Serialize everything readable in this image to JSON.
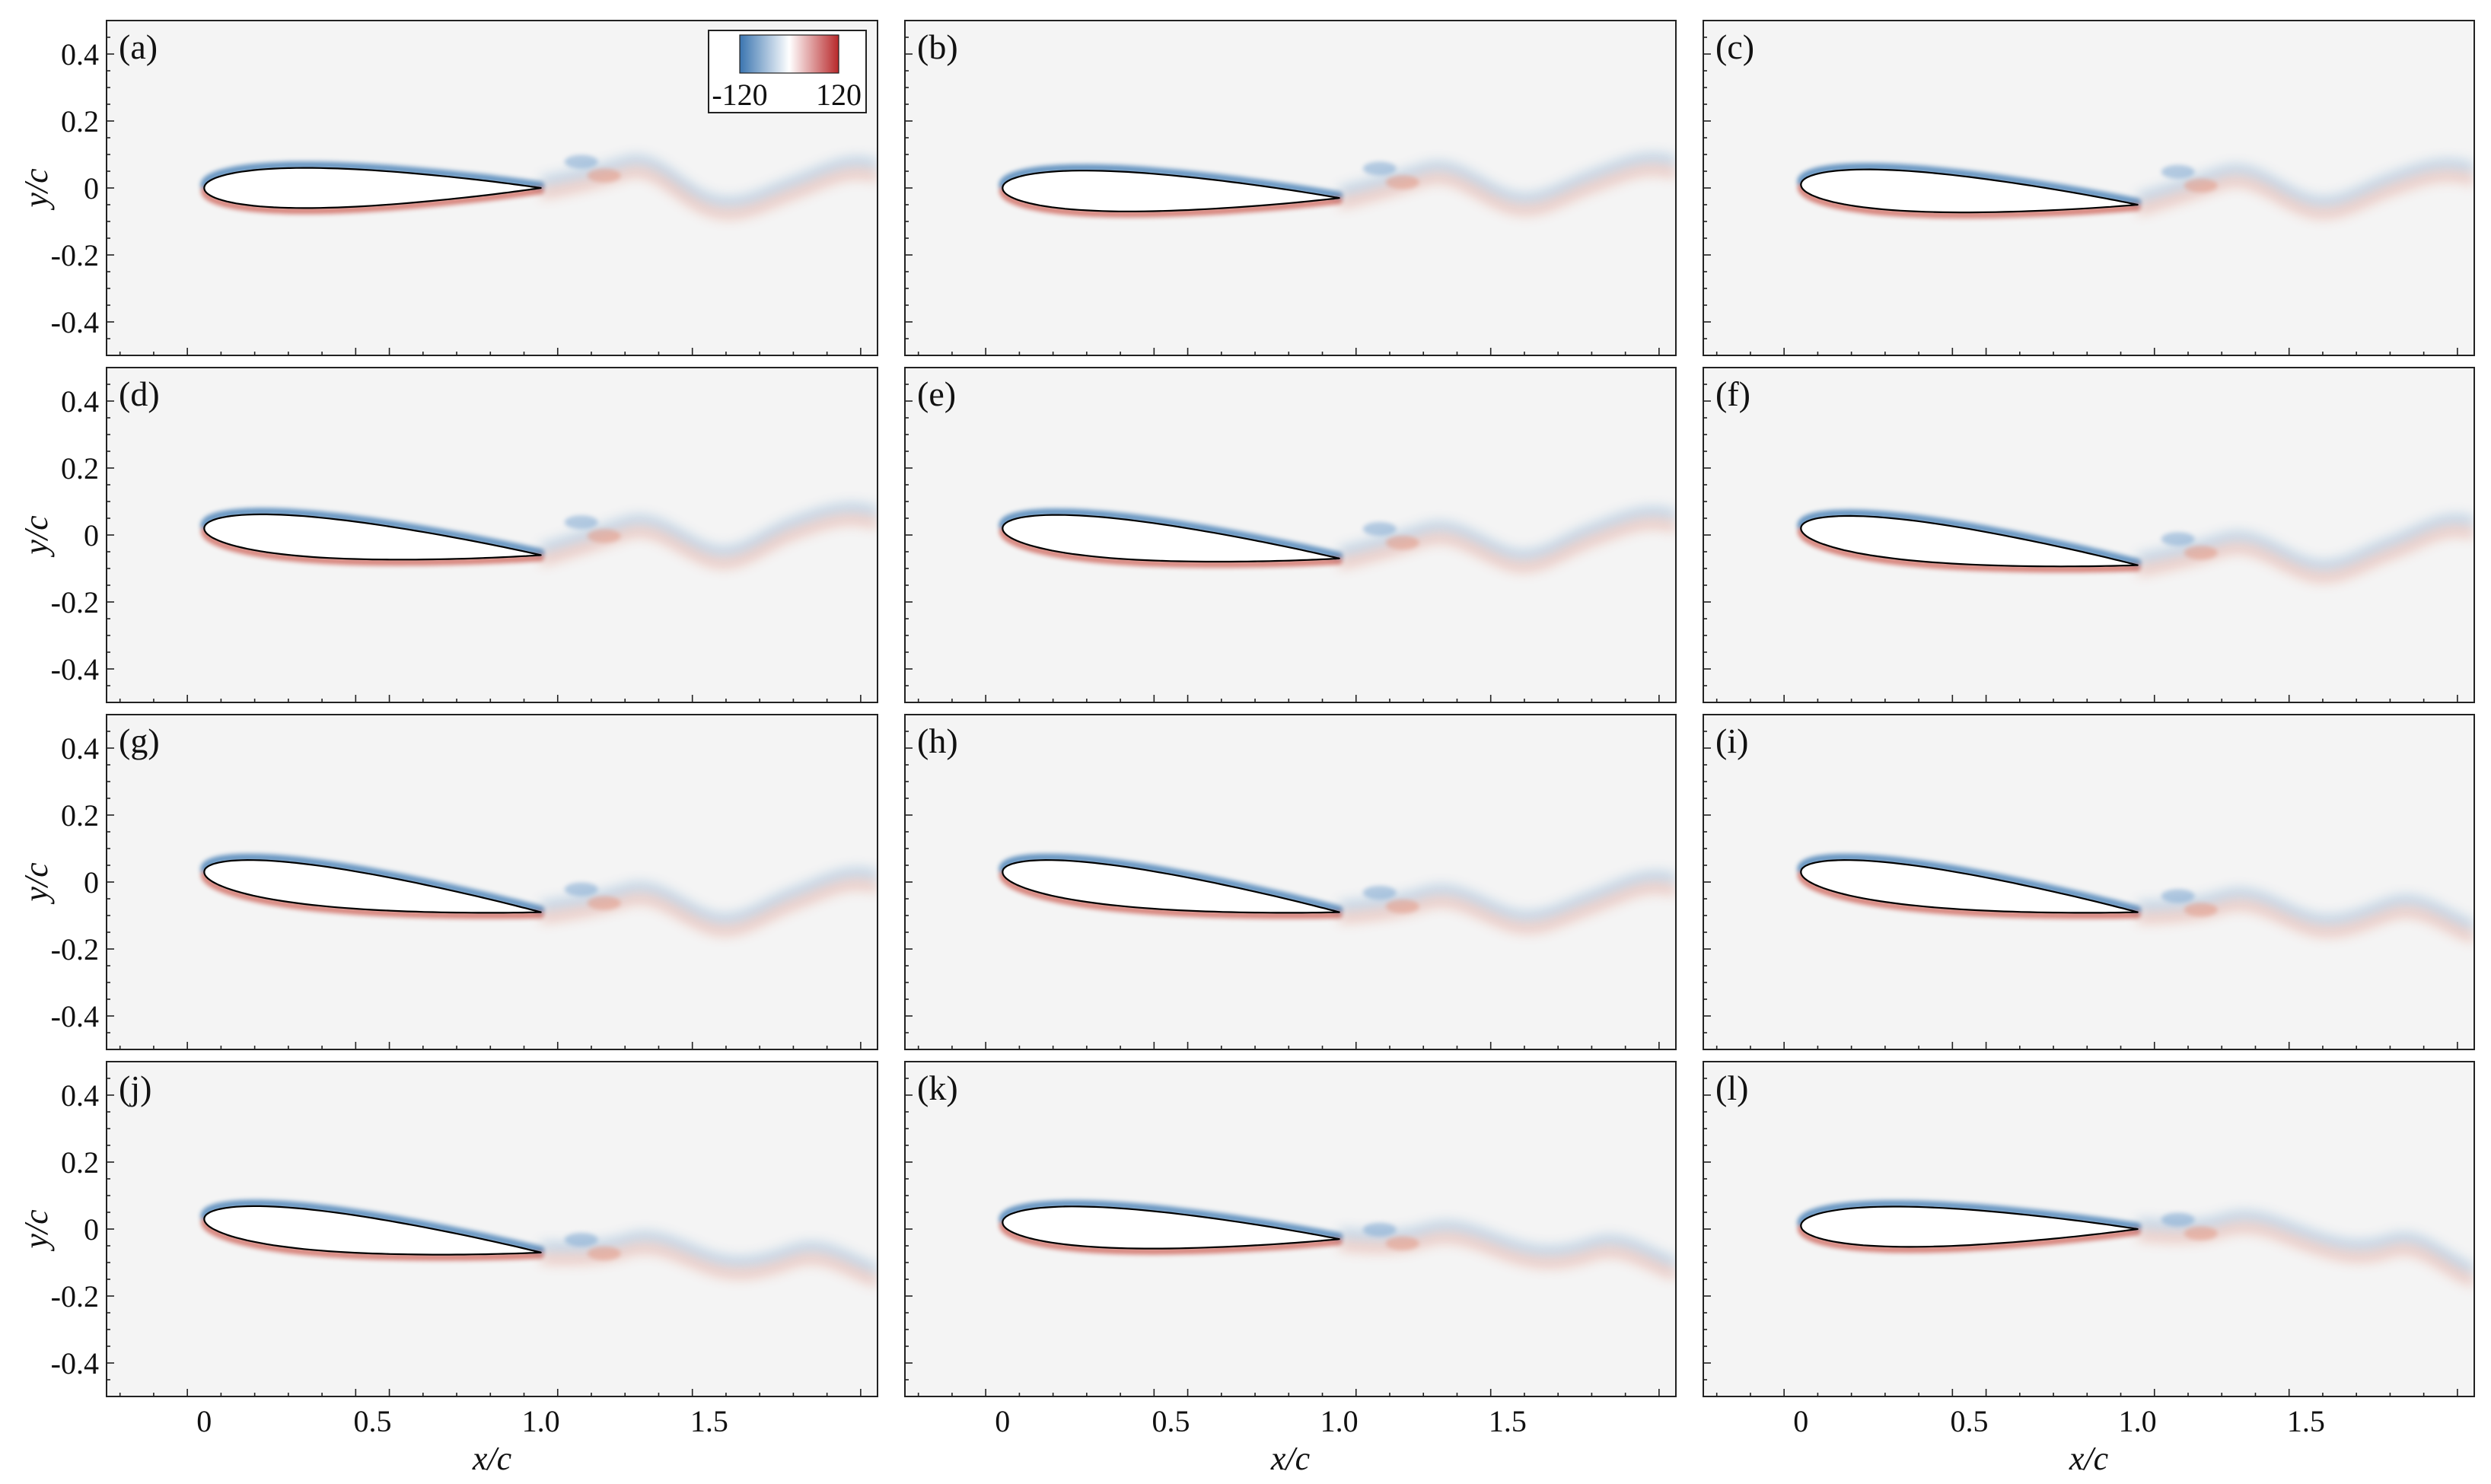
{
  "chart_data": {
    "type": "heatmap",
    "description_quantity": "vorticity contours around a pitching airfoil, 12 snapshots",
    "layout": "4 rows x 3 columns",
    "xlabel": "x/c",
    "ylabel": "y/c",
    "xlim": [
      -0.29,
      2.0
    ],
    "ylim": [
      -0.5,
      0.5
    ],
    "x_ticks": [
      0,
      0.5,
      1.0,
      1.5
    ],
    "x_tick_labels": [
      "0",
      "0.5",
      "1.0",
      "1.5"
    ],
    "y_ticks": [
      0.4,
      0.2,
      0,
      -0.2,
      -0.4
    ],
    "y_tick_labels": [
      "0.4",
      "0.2",
      "0",
      "-0.2",
      "-0.4"
    ],
    "colorbar": {
      "min": -120,
      "max": 120,
      "min_label": "-120",
      "max_label": "120",
      "colors": [
        "#3a75b0",
        "#ffffff",
        "#b8282a"
      ]
    },
    "panels": [
      {
        "label": "(a)",
        "trailing_edge_y": 0.0,
        "leading_edge_y": 0.0,
        "wake": [
          0.06,
          -0.05,
          0.0,
          0.05
        ]
      },
      {
        "label": "(b)",
        "trailing_edge_y": -0.03,
        "leading_edge_y": 0.0,
        "wake": [
          0.04,
          -0.04,
          0.02,
          0.06
        ]
      },
      {
        "label": "(c)",
        "trailing_edge_y": -0.05,
        "leading_edge_y": 0.01,
        "wake": [
          0.03,
          -0.05,
          0.01,
          0.04
        ]
      },
      {
        "label": "(d)",
        "trailing_edge_y": -0.06,
        "leading_edge_y": 0.02,
        "wake": [
          0.02,
          -0.06,
          0.02,
          0.05
        ]
      },
      {
        "label": "(e)",
        "trailing_edge_y": -0.07,
        "leading_edge_y": 0.02,
        "wake": [
          0.0,
          -0.07,
          0.0,
          0.04
        ]
      },
      {
        "label": "(f)",
        "trailing_edge_y": -0.09,
        "leading_edge_y": 0.02,
        "wake": [
          -0.03,
          -0.1,
          -0.04,
          0.02
        ]
      },
      {
        "label": "(g)",
        "trailing_edge_y": -0.09,
        "leading_edge_y": 0.03,
        "wake": [
          -0.04,
          -0.12,
          -0.05,
          0.0
        ]
      },
      {
        "label": "(h)",
        "trailing_edge_y": -0.09,
        "leading_edge_y": 0.03,
        "wake": [
          -0.05,
          -0.11,
          -0.06,
          -0.01
        ]
      },
      {
        "label": "(i)",
        "trailing_edge_y": -0.09,
        "leading_edge_y": 0.03,
        "wake": [
          -0.06,
          -0.12,
          -0.08,
          -0.15
        ]
      },
      {
        "label": "(j)",
        "trailing_edge_y": -0.07,
        "leading_edge_y": 0.03,
        "wake": [
          -0.05,
          -0.1,
          -0.08,
          -0.14
        ]
      },
      {
        "label": "(k)",
        "trailing_edge_y": -0.03,
        "leading_edge_y": 0.02,
        "wake": [
          -0.02,
          -0.06,
          -0.06,
          -0.12
        ]
      },
      {
        "label": "(l)",
        "trailing_edge_y": 0.0,
        "leading_edge_y": 0.01,
        "wake": [
          0.01,
          -0.03,
          -0.05,
          -0.14
        ]
      }
    ]
  }
}
